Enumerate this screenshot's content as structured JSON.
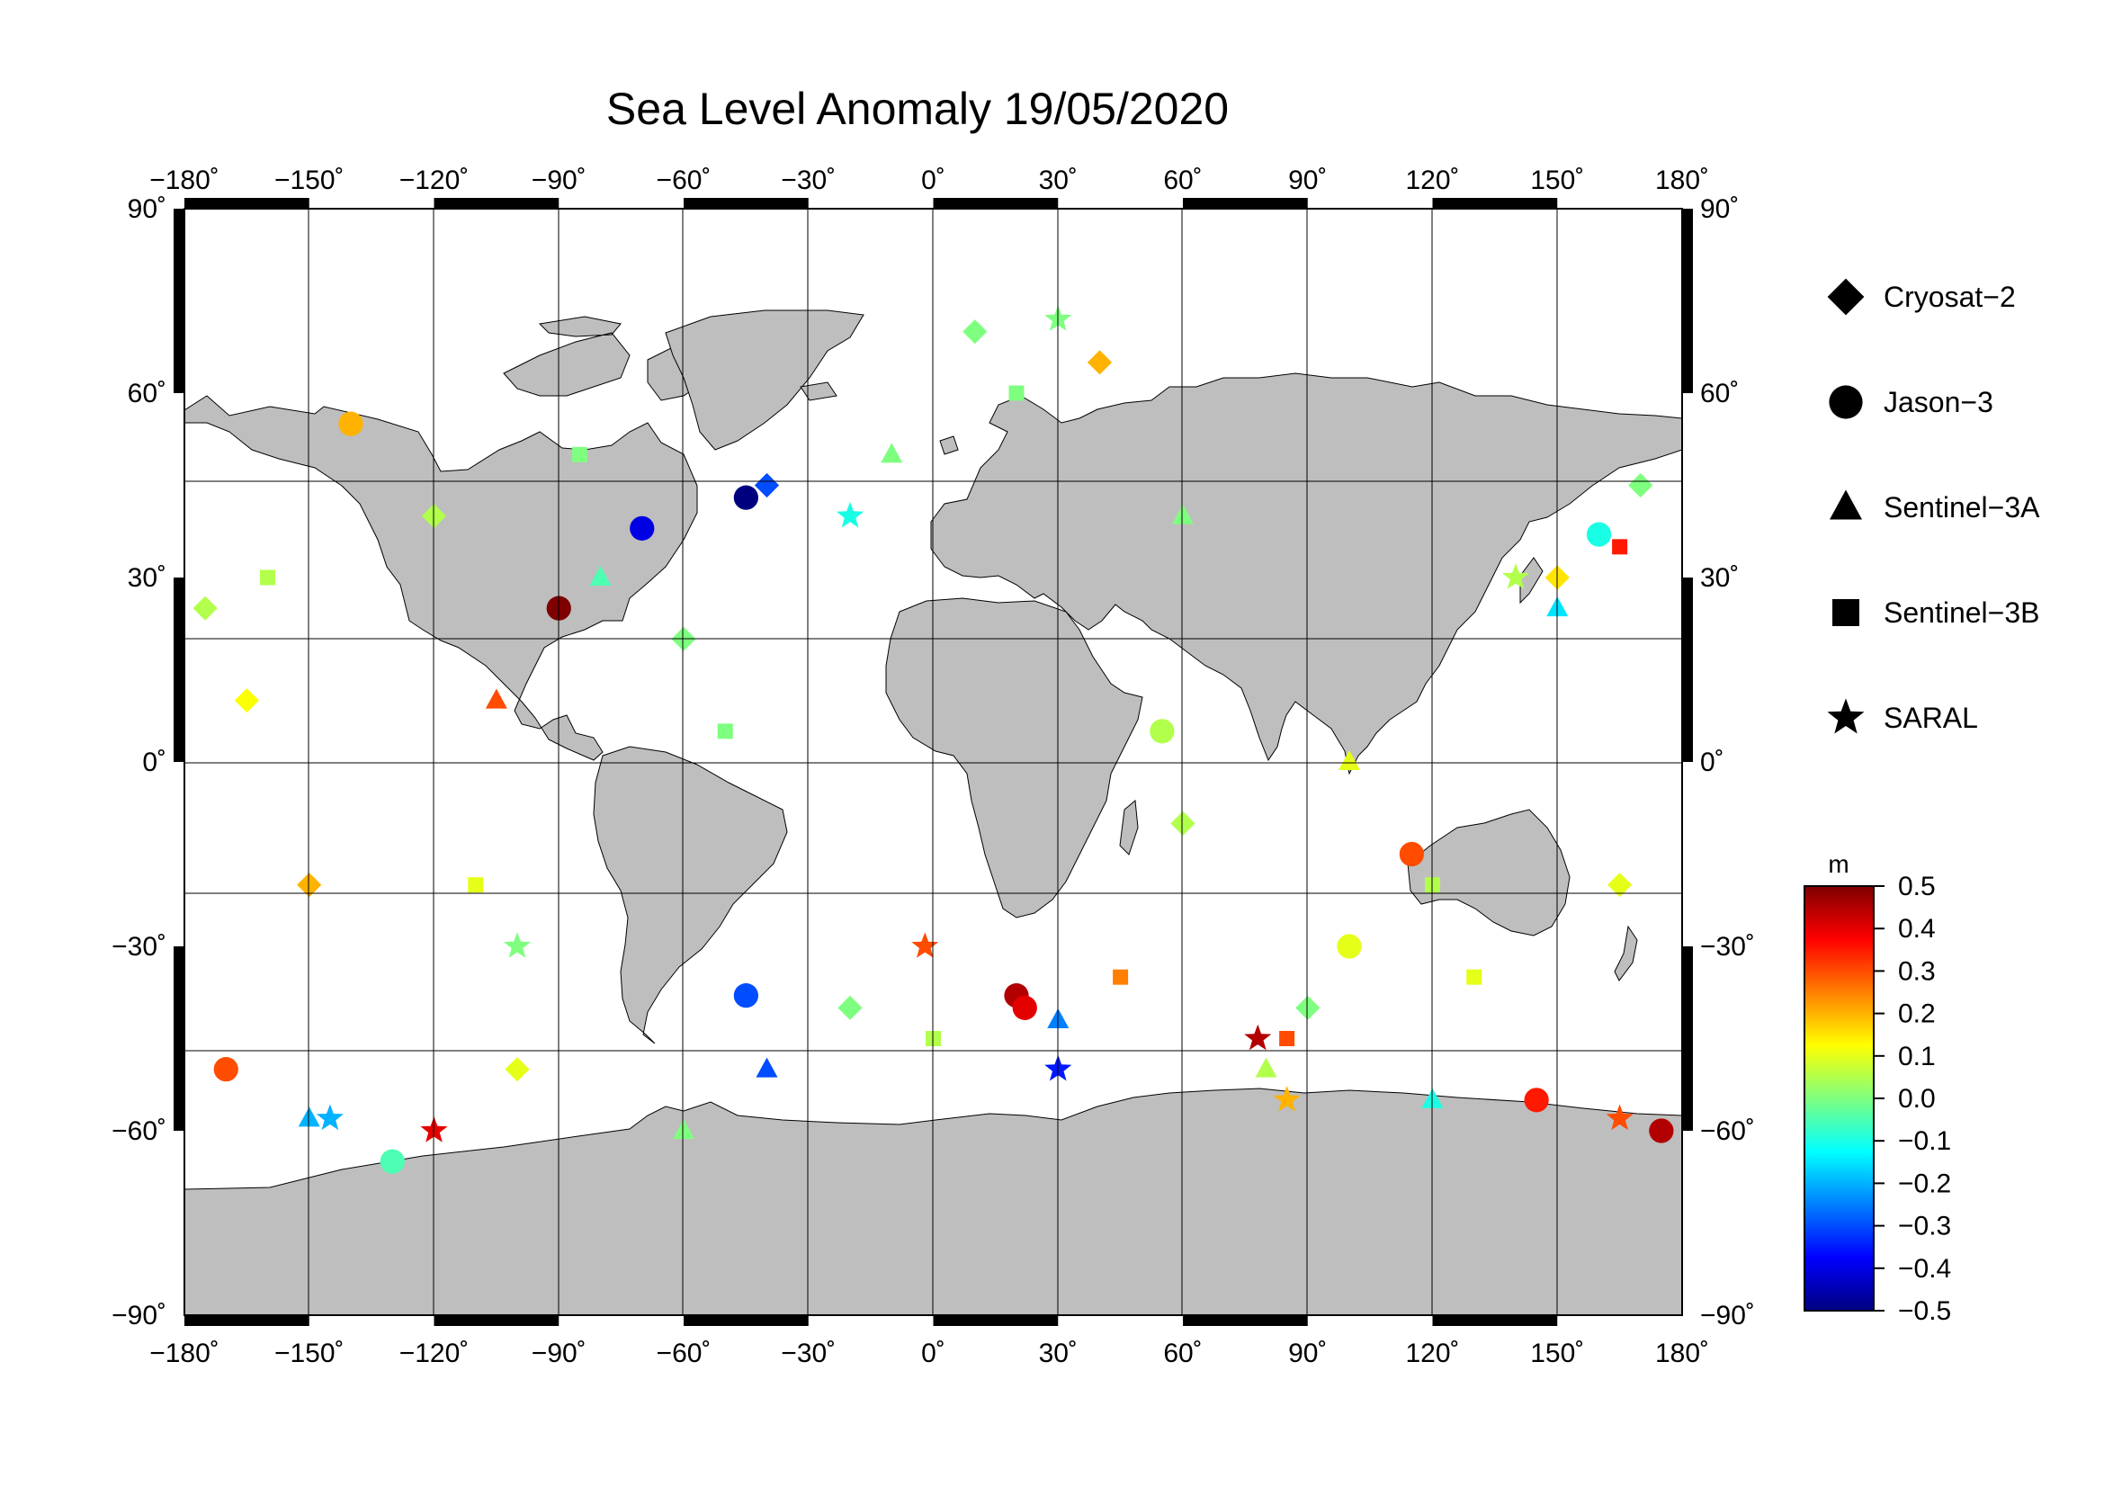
{
  "title": "Sea Level Anomaly 19/05/2020",
  "map": {
    "lon_ticks": [
      "−180˚",
      "−150˚",
      "−120˚",
      "−90˚",
      "−60˚",
      "−30˚",
      "0˚",
      "30˚",
      "60˚",
      "90˚",
      "120˚",
      "150˚",
      "180˚"
    ],
    "lat_ticks": [
      "90˚",
      "60˚",
      "30˚",
      "0˚",
      "−30˚",
      "−60˚",
      "−90˚"
    ],
    "land_color": "#bebebe",
    "ocean_color": "#ffffff",
    "grid": true,
    "lon_range": [
      -180,
      180
    ],
    "lat_range": [
      -90,
      90
    ]
  },
  "legend": {
    "placement": "right",
    "items": [
      {
        "label": "Cryosat−2",
        "symbol": "diamond"
      },
      {
        "label": "Jason−3",
        "symbol": "circle"
      },
      {
        "label": "Sentinel−3A",
        "symbol": "triangle"
      },
      {
        "label": "Sentinel−3B",
        "symbol": "square"
      },
      {
        "label": "SARAL",
        "symbol": "star"
      }
    ]
  },
  "colorbar": {
    "unit": "m",
    "range": [
      -0.5,
      0.5
    ],
    "tick_labels": [
      "0.5",
      "0.4",
      "0.3",
      "0.2",
      "0.1",
      "0.0",
      "−0.1",
      "−0.2",
      "−0.3",
      "−0.4",
      "−0.5"
    ],
    "colormap": [
      "#00007f",
      "#0000ff",
      "#007fff",
      "#00ffff",
      "#7fff7f",
      "#ffff00",
      "#ff7f00",
      "#ff0000",
      "#7f0000"
    ]
  },
  "chart_data": {
    "type": "scatter",
    "x_range": [
      -180,
      180
    ],
    "y_range": [
      -90,
      90
    ],
    "series": [
      {
        "name": "Cryosat−2",
        "marker": "diamond",
        "points": [
          [
            -175,
            25,
            0.05
          ],
          [
            -165,
            10,
            0.12
          ],
          [
            -150,
            -20,
            0.2
          ],
          [
            -120,
            40,
            0.05
          ],
          [
            -60,
            20,
            0.0
          ],
          [
            -40,
            45,
            -0.3
          ],
          [
            10,
            70,
            0.0
          ],
          [
            40,
            65,
            0.2
          ],
          [
            60,
            -10,
            0.05
          ],
          [
            90,
            -40,
            0.0
          ],
          [
            150,
            30,
            0.15
          ],
          [
            165,
            -20,
            0.1
          ],
          [
            170,
            45,
            0.0
          ],
          [
            -100,
            -50,
            0.1
          ],
          [
            -20,
            -40,
            0.0
          ]
        ]
      },
      {
        "name": "Jason−3",
        "marker": "circle",
        "points": [
          [
            -170,
            -50,
            0.3
          ],
          [
            -140,
            55,
            0.2
          ],
          [
            -90,
            25,
            0.5
          ],
          [
            -70,
            38,
            -0.4
          ],
          [
            -45,
            -38,
            -0.3
          ],
          [
            -45,
            43,
            -0.5
          ],
          [
            20,
            -38,
            0.45
          ],
          [
            22,
            -40,
            0.4
          ],
          [
            55,
            5,
            0.05
          ],
          [
            100,
            -30,
            0.1
          ],
          [
            115,
            -15,
            0.3
          ],
          [
            145,
            -55,
            0.35
          ],
          [
            160,
            37,
            -0.1
          ],
          [
            175,
            -60,
            0.45
          ],
          [
            -130,
            -65,
            -0.05
          ]
        ]
      },
      {
        "name": "Sentinel−3A",
        "marker": "triangle",
        "points": [
          [
            -150,
            -58,
            -0.2
          ],
          [
            -105,
            10,
            0.3
          ],
          [
            -80,
            30,
            -0.05
          ],
          [
            -40,
            -50,
            -0.3
          ],
          [
            30,
            -42,
            -0.25
          ],
          [
            60,
            40,
            0.0
          ],
          [
            80,
            -50,
            0.05
          ],
          [
            120,
            -55,
            -0.1
          ],
          [
            150,
            25,
            -0.15
          ],
          [
            -10,
            50,
            0.0
          ],
          [
            -60,
            -60,
            0.0
          ],
          [
            100,
            0,
            0.1
          ]
        ]
      },
      {
        "name": "Sentinel−3B",
        "marker": "square",
        "points": [
          [
            -160,
            30,
            0.05
          ],
          [
            -110,
            -20,
            0.1
          ],
          [
            -50,
            5,
            0.0
          ],
          [
            0,
            -45,
            0.05
          ],
          [
            45,
            -35,
            0.25
          ],
          [
            85,
            -45,
            0.3
          ],
          [
            130,
            -35,
            0.1
          ],
          [
            165,
            35,
            0.35
          ],
          [
            -85,
            50,
            0.0
          ],
          [
            20,
            60,
            0.0
          ],
          [
            120,
            -20,
            0.05
          ]
        ]
      },
      {
        "name": "SARAL",
        "marker": "star",
        "points": [
          [
            -145,
            -58,
            -0.2
          ],
          [
            -120,
            -60,
            0.4
          ],
          [
            -2,
            -30,
            0.3
          ],
          [
            30,
            -50,
            -0.35
          ],
          [
            78,
            -45,
            0.45
          ],
          [
            85,
            -55,
            0.2
          ],
          [
            165,
            -58,
            0.3
          ],
          [
            -20,
            40,
            -0.1
          ],
          [
            30,
            72,
            0.0
          ],
          [
            -100,
            -30,
            0.0
          ],
          [
            140,
            30,
            0.05
          ]
        ]
      }
    ]
  }
}
